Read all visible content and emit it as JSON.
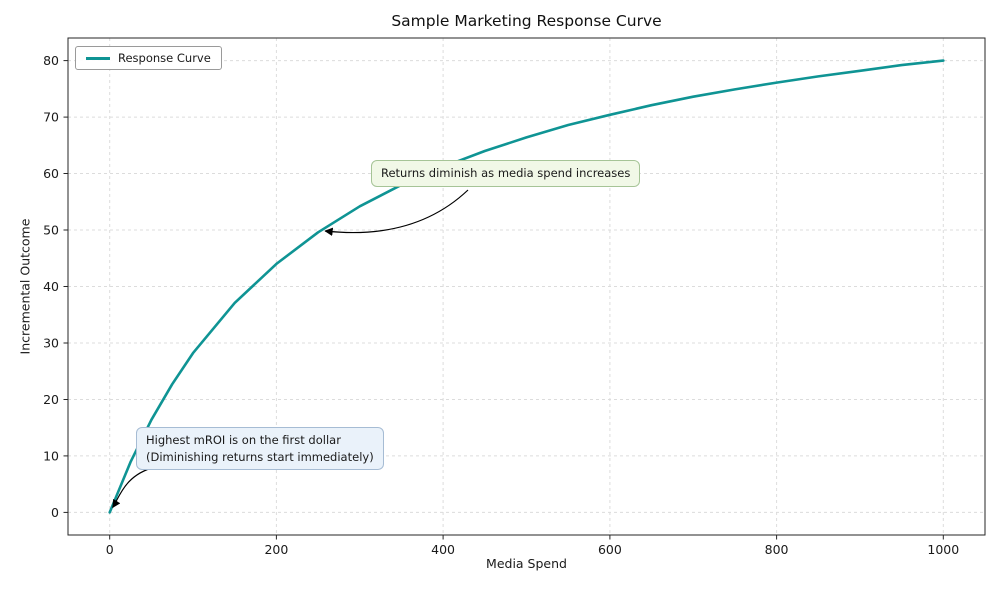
{
  "chart_data": {
    "type": "line",
    "title": "Sample Marketing Response Curve",
    "xlabel": "Media Spend",
    "ylabel": "Incremental Outcome",
    "xlim": [
      -50,
      1050
    ],
    "ylim": [
      -4,
      84
    ],
    "xticks": [
      0,
      200,
      400,
      600,
      800,
      1000
    ],
    "yticks": [
      0,
      10,
      20,
      30,
      40,
      50,
      60,
      70,
      80
    ],
    "grid": "dashed",
    "legend_position": "upper-left",
    "series": [
      {
        "name": "Response Curve",
        "color": "#0f9494",
        "points": [
          [
            0,
            0
          ],
          [
            25,
            8.9
          ],
          [
            50,
            16.4
          ],
          [
            75,
            22.7
          ],
          [
            100,
            28.2
          ],
          [
            150,
            37.1
          ],
          [
            200,
            44.0
          ],
          [
            250,
            49.6
          ],
          [
            300,
            54.2
          ],
          [
            350,
            58.0
          ],
          [
            400,
            61.2
          ],
          [
            450,
            64.0
          ],
          [
            500,
            66.4
          ],
          [
            550,
            68.6
          ],
          [
            600,
            70.4
          ],
          [
            650,
            72.1
          ],
          [
            700,
            73.6
          ],
          [
            750,
            74.9
          ],
          [
            800,
            76.1
          ],
          [
            850,
            77.2
          ],
          [
            900,
            78.2
          ],
          [
            950,
            79.2
          ],
          [
            1000,
            80.0
          ]
        ]
      }
    ],
    "annotations": [
      {
        "text": "Returns diminish as media spend increases",
        "arrow_target": {
          "x": 250,
          "y": 50
        }
      },
      {
        "line1": "Highest mROI is on the first dollar",
        "line2": "(Diminishing returns start immediately)",
        "arrow_target": {
          "x": 0,
          "y": 0
        }
      }
    ],
    "legend": {
      "label": "Response Curve"
    }
  }
}
